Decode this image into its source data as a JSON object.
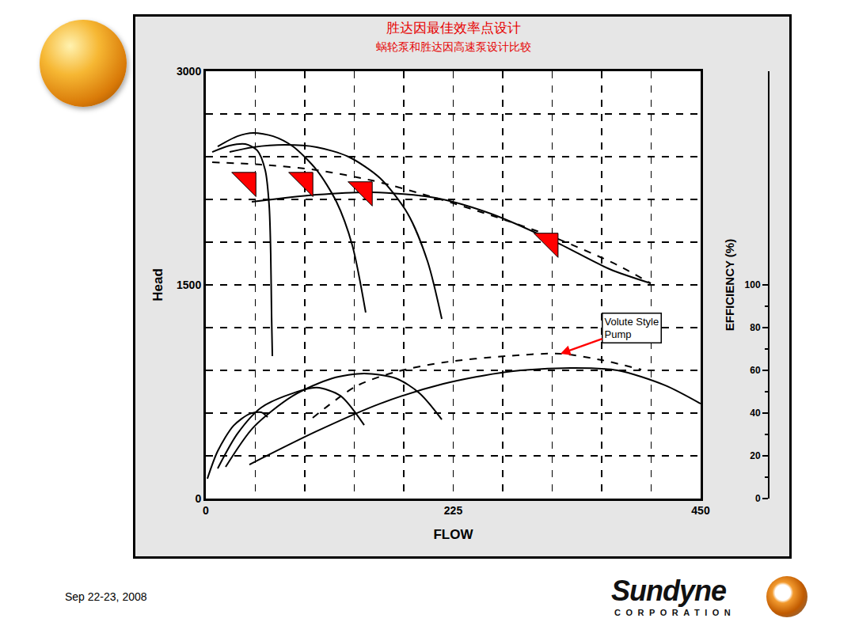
{
  "chart_data": {
    "type": "line",
    "title": "胜达因最佳效率点设计",
    "subtitle": "蜗轮泵和胜达因高速泵设计比较",
    "x_label": "FLOW",
    "y_label": "Head",
    "y2_label": "EFFICIENCY (%)",
    "xlim": [
      0,
      450
    ],
    "xticks": [
      0,
      225,
      450
    ],
    "ylim": [
      0,
      3000
    ],
    "yticks": [
      0,
      1500,
      3000
    ],
    "y2lim": [
      0,
      200
    ],
    "y2ticks": [
      0,
      20,
      40,
      60,
      80,
      100
    ],
    "grid": true,
    "series": [
      {
        "color": "#000000",
        "line_style": "solid",
        "x": [
          5.8,
          21.6,
          36,
          46.8,
          54,
          57.6,
          59,
          59.8,
          60.5
        ],
        "values": [
          2433,
          2478,
          2489,
          2444,
          2306,
          2056,
          1722,
          1278,
          1000
        ]
      },
      {
        "color": "#000000",
        "line_style": "solid",
        "x": [
          10.8,
          28.8,
          43.2,
          61.2,
          79.2,
          100.8,
          118.8,
          133.2,
          145.4
        ],
        "values": [
          2472,
          2544,
          2567,
          2544,
          2472,
          2306,
          2083,
          1778,
          1306
        ]
      },
      {
        "color": "#000000",
        "line_style": "solid",
        "x": [
          21.6,
          43.2,
          72,
          100.8,
          129.6,
          158.4,
          183.6,
          201.6,
          214.6
        ],
        "values": [
          2433,
          2467,
          2483,
          2467,
          2400,
          2250,
          2000,
          1667,
          1261
        ]
      },
      {
        "color": "#000000",
        "line_style": "solid",
        "x": [
          41.8,
          100.8,
          151.2,
          208.8,
          259.2,
          316.8,
          367.2,
          404.6
        ],
        "values": [
          2083,
          2133,
          2150,
          2111,
          2000,
          1806,
          1611,
          1511
        ]
      },
      {
        "color": "#000000",
        "line_style": "dashed",
        "x": [
          5.8,
          50.4,
          100.8,
          151.2,
          208.8,
          259.2,
          316.8,
          374.4,
          404.6
        ],
        "values": [
          2361,
          2344,
          2306,
          2233,
          2111,
          1989,
          1833,
          1639,
          1511
        ]
      },
      {
        "type": "scatter",
        "marker": "triangle-ne",
        "color": "#ff0000",
        "x": [
          38.2,
          90,
          144,
          313
        ],
        "values": [
          2233,
          2233,
          2167,
          1806
        ]
      },
      {
        "color": "#000000",
        "line_style": "solid",
        "axis": "y2",
        "x": [
          1.4,
          10.8,
          25.2,
          39.6,
          50.4,
          56.2
        ],
        "values": [
          9.3,
          22.2,
          34.1,
          39.6,
          40.4,
          38.1
        ]
      },
      {
        "color": "#000000",
        "line_style": "solid",
        "axis": "y2",
        "x": [
          10.8,
          28.8,
          50.4,
          79.2,
          100.8,
          122.4,
          144
        ],
        "values": [
          14.1,
          30.4,
          42.6,
          49.3,
          51.9,
          48.1,
          34.4
        ]
      },
      {
        "color": "#000000",
        "line_style": "solid",
        "axis": "y2",
        "x": [
          18,
          43.2,
          79.2,
          115.2,
          144,
          172.8,
          194.4,
          214.6
        ],
        "values": [
          14.8,
          33.3,
          48.1,
          56.3,
          58.5,
          56.3,
          49.3,
          37
        ]
      },
      {
        "color": "#000000",
        "line_style": "solid",
        "axis": "y2",
        "x": [
          39.6,
          100.8,
          158.4,
          216,
          273.6,
          331.2,
          374.4,
          417.6,
          450
        ],
        "values": [
          15.9,
          31.5,
          44.4,
          53.7,
          59.3,
          61.1,
          60,
          53,
          44.4
        ]
      },
      {
        "color": "#000000",
        "line_style": "dashed",
        "axis": "y2",
        "x": [
          97.2,
          136.8,
          172.8,
          216,
          273.6,
          322.5,
          360,
          396
        ],
        "values": [
          37.8,
          52.6,
          59.3,
          63.7,
          66.7,
          67.8,
          64.8,
          60.4
        ]
      }
    ],
    "annotations": [
      {
        "text": "Volute Style Pump",
        "x": 322.5,
        "y": 67.8,
        "axis": "y2",
        "color": "#ff0000"
      }
    ]
  },
  "footer": {
    "date": "Sep 22-23, 2008",
    "logo": "Sundyne",
    "logo_sub": "CORPORATION"
  }
}
